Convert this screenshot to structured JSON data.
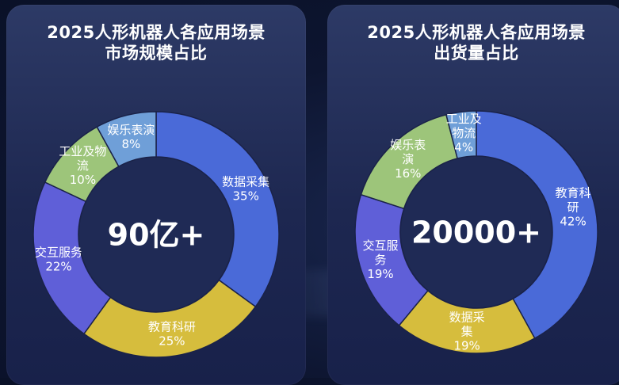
{
  "chart_data": [
    {
      "type": "pie",
      "title_line1": "2025人形机器人各应用场景",
      "title_line2": "市场规模占比",
      "center_text": "90亿+",
      "slices": [
        {
          "name_lines": [
            "数据采集"
          ],
          "value": 35,
          "label": "35%",
          "color": "#4a6ad8"
        },
        {
          "name_lines": [
            "教育科研"
          ],
          "value": 25,
          "label": "25%",
          "color": "#d6bd3d"
        },
        {
          "name_lines": [
            "交互服务"
          ],
          "value": 22,
          "label": "22%",
          "color": "#5f5fd8"
        },
        {
          "name_lines": [
            "工业及物",
            "流"
          ],
          "value": 10,
          "label": "10%",
          "color": "#9dc57a"
        },
        {
          "name_lines": [
            "娱乐表演"
          ],
          "value": 8,
          "label": "8%",
          "color": "#6f9fd8"
        }
      ]
    },
    {
      "type": "pie",
      "title_line1": "2025人形机器人各应用场景",
      "title_line2": "出货量占比",
      "center_text": "20000+",
      "slices": [
        {
          "name_lines": [
            "教育科",
            "研"
          ],
          "value": 42,
          "label": "42%",
          "color": "#4a6ad8"
        },
        {
          "name_lines": [
            "数据采",
            "集"
          ],
          "value": 19,
          "label": "19%",
          "color": "#d6bd3d"
        },
        {
          "name_lines": [
            "交互服",
            "务"
          ],
          "value": 19,
          "label": "19%",
          "color": "#5f5fd8"
        },
        {
          "name_lines": [
            "娱乐表",
            "演"
          ],
          "value": 16,
          "label": "16%",
          "color": "#9dc57a"
        },
        {
          "name_lines": [
            "工业及",
            "物流"
          ],
          "value": 4,
          "label": "4%",
          "color": "#6f9fd8"
        }
      ]
    }
  ]
}
